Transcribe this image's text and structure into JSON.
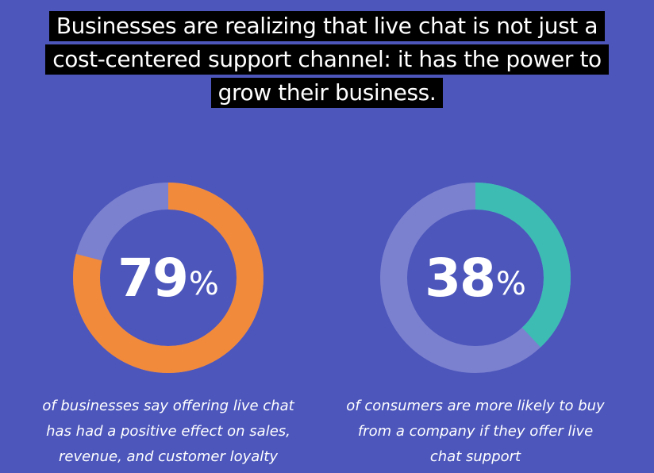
{
  "headline": {
    "lines": [
      "Businesses are realizing that live chat is not just a",
      "cost-centered support channel: it has the power to",
      "grow their business."
    ]
  },
  "colors": {
    "background": "#4c56bb",
    "track": "#7b80cf",
    "orange": "#f28a3c",
    "teal": "#3dbcb4"
  },
  "chart_data": [
    {
      "type": "pie",
      "values": [
        79,
        21
      ],
      "value_label": "79",
      "unit": "%",
      "caption_lines": [
        "of businesses say offering live chat",
        "has had a positive effect on sales,",
        "revenue, and customer loyalty"
      ],
      "accent_color": "#f28a3c"
    },
    {
      "type": "pie",
      "values": [
        38,
        62
      ],
      "value_label": "38",
      "unit": "%",
      "caption_lines": [
        "of consumers are more likely to buy",
        "from a company if they offer live",
        "chat support"
      ],
      "accent_color": "#3dbcb4"
    }
  ]
}
